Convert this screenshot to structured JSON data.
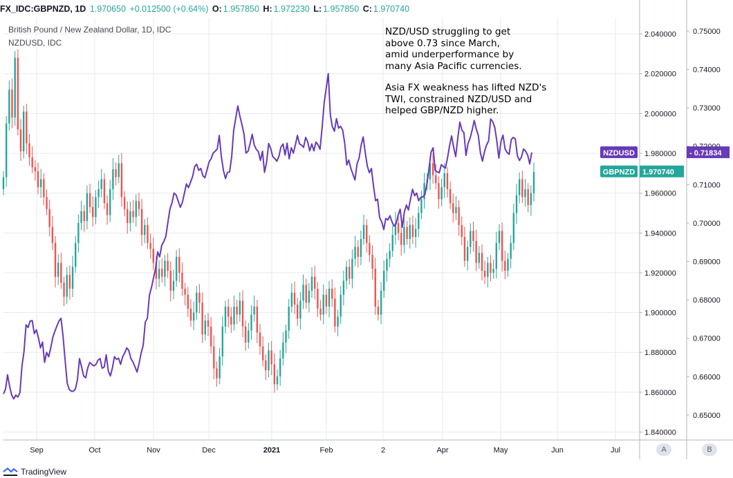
{
  "header": {
    "symbol": "FX_IDC:GBPNZD, 1D",
    "last": "1.970650",
    "change": "+0.012500 (+0.64%)",
    "o_label": "O:",
    "o_value": "1.957850",
    "h_label": "H:",
    "h_value": "1.972230",
    "l_label": "L:",
    "l_value": "1.957850",
    "c_label": "C:",
    "c_value": "1.970740"
  },
  "legend": {
    "main_title": "British Pound / New Zealand Dollar, 1D, IDC",
    "overlay_title": "NZDUSD, IDC"
  },
  "annotation": {
    "paragraph1": "NZD/USD struggling to get\nabove 0.73 since March,\namid underperformance by\nmany Asia Pacific currencies.",
    "paragraph2": "Asia FX weakness has lifted NZD's\nTWI, constrained NZD/USD and\nhelped GBP/NZD higher."
  },
  "scale_buttons": {
    "a": "A",
    "b": "B"
  },
  "footer": {
    "brand": "TradingView"
  },
  "colors": {
    "up": "#26a69a",
    "down": "#ef5350",
    "nzdusd": "#673ab7",
    "grid": "#e6e9ef"
  },
  "chart_data": {
    "type": "line",
    "x_ticks": [
      "Sep",
      "Oct",
      "Nov",
      "Dec",
      "2021",
      "Feb",
      "2",
      "Apr",
      "May",
      "Jun",
      "Jul"
    ],
    "left_axis": {
      "series": "GBPNZD",
      "ticks": [
        "2.040000",
        "2.020000",
        "2.000000",
        "1.980000",
        "1.960000",
        "1.940000",
        "1.920000",
        "1.900000",
        "1.880000",
        "1.860000",
        "1.840000"
      ],
      "ylim": [
        1.836,
        2.048
      ]
    },
    "right_axis": {
      "series": "NZDUSD",
      "ticks": [
        "0.75000",
        "0.74000",
        "0.73000",
        "0.72000",
        "0.71000",
        "0.70000",
        "0.69000",
        "0.68000",
        "0.67000",
        "0.66000",
        "0.65000"
      ],
      "ylim": [
        0.6435,
        0.7534
      ]
    },
    "price_labels": [
      {
        "name": "NZDUSD",
        "value": "0.71834",
        "color": "#673ab7"
      },
      {
        "name": "GBPNZD",
        "value": "1.970740",
        "color": "#26a69a"
      }
    ],
    "series": [
      {
        "name": "GBPNZD",
        "style": "candles",
        "close": [
          1.968,
          1.995,
          2.012,
          1.998,
          2.028,
          1.992,
          1.981,
          2.001,
          1.985,
          1.978,
          1.973,
          1.971,
          1.963,
          1.967,
          1.958,
          1.952,
          1.943,
          1.935,
          1.918,
          1.925,
          1.915,
          1.908,
          1.919,
          1.912,
          1.923,
          1.935,
          1.945,
          1.951,
          1.946,
          1.96,
          1.953,
          1.948,
          1.958,
          1.962,
          1.967,
          1.955,
          1.949,
          1.962,
          1.972,
          1.968,
          1.975,
          1.958,
          1.952,
          1.945,
          1.951,
          1.948,
          1.956,
          1.952,
          1.939,
          1.944,
          1.935,
          1.932,
          1.925,
          1.917,
          1.922,
          1.918,
          1.926,
          1.921,
          1.911,
          1.916,
          1.928,
          1.92,
          1.912,
          1.909,
          1.902,
          1.896,
          1.9,
          1.91,
          1.905,
          1.889,
          1.896,
          1.893,
          1.883,
          1.872,
          1.867,
          1.878,
          1.893,
          1.903,
          1.898,
          1.894,
          1.903,
          1.899,
          1.906,
          1.893,
          1.885,
          1.891,
          1.899,
          1.903,
          1.89,
          1.883,
          1.876,
          1.871,
          1.881,
          1.874,
          1.864,
          1.868,
          1.877,
          1.885,
          1.891,
          1.903,
          1.91,
          1.904,
          1.897,
          1.906,
          1.914,
          1.905,
          1.911,
          1.918,
          1.912,
          1.902,
          1.899,
          1.909,
          1.903,
          1.912,
          1.907,
          1.893,
          1.898,
          1.909,
          1.916,
          1.923,
          1.917,
          1.927,
          1.933,
          1.928,
          1.937,
          1.944,
          1.935,
          1.929,
          1.922,
          1.903,
          1.899,
          1.911,
          1.921,
          1.927,
          1.931,
          1.939,
          1.945,
          1.94,
          1.934,
          1.943,
          1.937,
          1.944,
          1.938,
          1.942,
          1.95,
          1.957,
          1.965,
          1.967,
          1.975,
          1.969,
          1.965,
          1.957,
          1.963,
          1.97,
          1.962,
          1.955,
          1.95,
          1.953,
          1.944,
          1.938,
          1.926,
          1.933,
          1.941,
          1.936,
          1.925,
          1.93,
          1.921,
          1.918,
          1.925,
          1.92,
          1.922,
          1.935,
          1.941,
          1.926,
          1.921,
          1.927,
          1.935,
          1.95,
          1.959,
          1.967,
          1.958,
          1.962,
          1.954,
          1.96,
          1.9707
        ]
      },
      {
        "name": "NZDUSD",
        "style": "line",
        "values": [
          0.6555,
          0.6568,
          0.6605,
          0.6575,
          0.6552,
          0.6542,
          0.6552,
          0.6547,
          0.6558,
          0.6628,
          0.6665,
          0.6735,
          0.6728,
          0.6745,
          0.6746,
          0.6712,
          0.6722,
          0.6702,
          0.6675,
          0.669,
          0.6637,
          0.6663,
          0.6652,
          0.6675,
          0.6702,
          0.6718,
          0.6732,
          0.6745,
          0.6752,
          0.6705,
          0.6642,
          0.6583,
          0.6567,
          0.6562,
          0.6562,
          0.6568,
          0.6592,
          0.6647,
          0.6625,
          0.6602,
          0.6597,
          0.6623,
          0.6637,
          0.6632,
          0.6628,
          0.6632,
          0.6643,
          0.6647,
          0.6622,
          0.6625,
          0.6657,
          0.6615,
          0.6602,
          0.6623,
          0.6652,
          0.6645,
          0.6648,
          0.6632,
          0.6652,
          0.6662,
          0.6675,
          0.6668,
          0.6647,
          0.6638,
          0.6625,
          0.6612,
          0.6635,
          0.6662,
          0.6682,
          0.6742,
          0.6752,
          0.6812,
          0.6832,
          0.6857,
          0.6882,
          0.6925,
          0.6912,
          0.6942,
          0.6952,
          0.6965,
          0.7002,
          0.7037,
          0.7053,
          0.7078,
          0.7073,
          0.7057,
          0.7041,
          0.7053,
          0.7077,
          0.7102,
          0.7092,
          0.7106,
          0.7121,
          0.7147,
          0.7153,
          0.7137,
          0.7142,
          0.7123,
          0.7118,
          0.7138,
          0.7159,
          0.7167,
          0.7182,
          0.7187,
          0.7193,
          0.7228,
          0.7173,
          0.7137,
          0.7116,
          0.7132,
          0.7133,
          0.7172,
          0.7241,
          0.7273,
          0.7305,
          0.7278,
          0.7257,
          0.7232,
          0.7182,
          0.7187,
          0.7207,
          0.7231,
          0.7203,
          0.7192,
          0.7186,
          0.7163,
          0.7187,
          0.7132,
          0.7158,
          0.7207,
          0.7194,
          0.7173,
          0.7168,
          0.7161,
          0.7174,
          0.7198,
          0.7206,
          0.7177,
          0.7208,
          0.7167,
          0.7196,
          0.7182,
          0.7203,
          0.7228,
          0.7206,
          0.7203,
          0.7197,
          0.7223,
          0.7211,
          0.7188,
          0.7206,
          0.7188,
          0.7211,
          0.7204,
          0.7192,
          0.7248,
          0.7313,
          0.7351,
          0.7389,
          0.7282,
          0.7251,
          0.7239,
          0.7272,
          0.7247,
          0.7252,
          0.7242,
          0.7208,
          0.7151,
          0.7164,
          0.7142,
          0.7127,
          0.7112,
          0.7154,
          0.7169,
          0.7203,
          0.7224,
          0.7183,
          0.7148,
          0.7131,
          0.7142,
          0.7097,
          0.7058,
          0.7062,
          0.7014,
          0.7003,
          0.6983,
          0.7012,
          0.7008,
          0.7019,
          0.7003,
          0.6992,
          0.6998,
          0.7021,
          0.7036,
          0.6989,
          0.7028,
          0.7047,
          0.7034,
          0.7062,
          0.7088,
          0.7071,
          0.7078,
          0.7058,
          0.7067,
          0.7068,
          0.7074,
          0.7102,
          0.7142,
          0.7184,
          0.7196,
          0.7137,
          0.7133,
          0.7131,
          0.7152,
          0.7147,
          0.7143,
          0.7169,
          0.7201,
          0.7227,
          0.7197,
          0.7173,
          0.7221,
          0.7263,
          0.7242,
          0.7235,
          0.7176,
          0.7207,
          0.7221,
          0.7242,
          0.7267,
          0.7245,
          0.7228,
          0.7183,
          0.7161,
          0.7186,
          0.7203,
          0.7214,
          0.7271,
          0.7264,
          0.7249,
          0.7213,
          0.7169,
          0.7212,
          0.7229,
          0.7193,
          0.7184,
          0.7179,
          0.7217,
          0.7223,
          0.7219,
          0.7175,
          0.7163,
          0.7172,
          0.7193,
          0.7187,
          0.7177,
          0.7154,
          0.7184
        ]
      }
    ],
    "grid": true,
    "legend": "top-left"
  }
}
